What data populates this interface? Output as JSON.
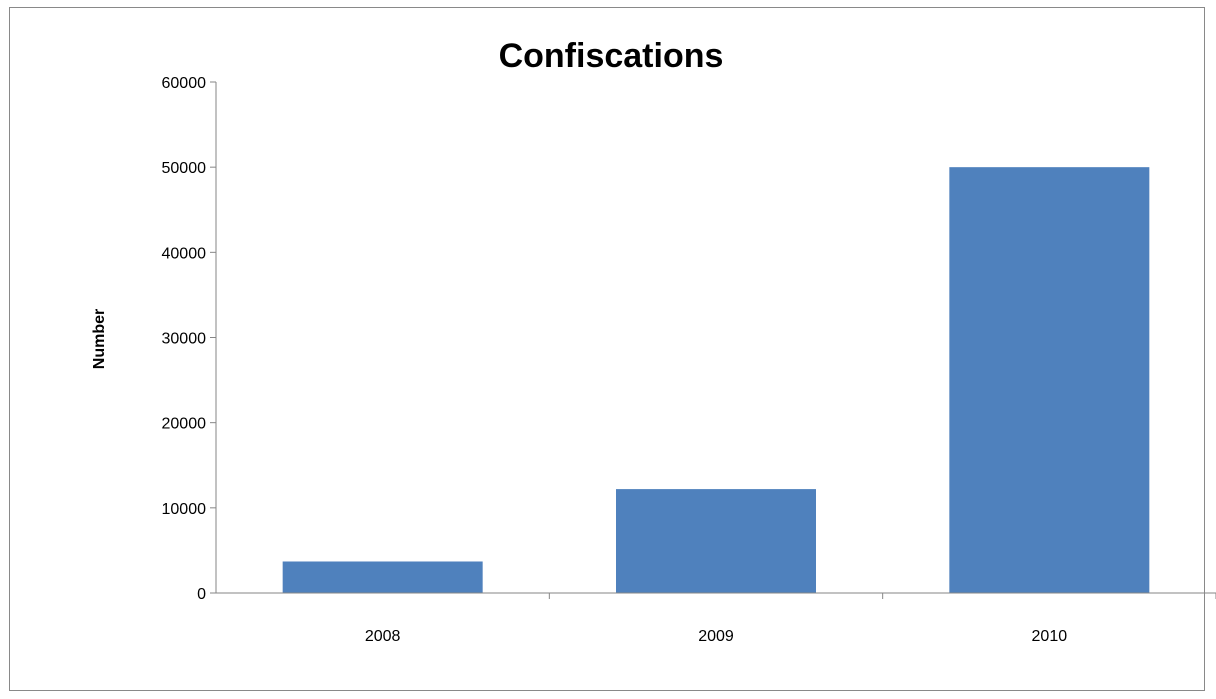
{
  "chart_data": {
    "type": "bar",
    "title": "Confiscations",
    "xlabel": "",
    "ylabel": "Number",
    "categories": [
      "2008",
      "2009",
      "2010"
    ],
    "values": [
      3700,
      12200,
      50000
    ],
    "ylim": [
      0,
      60000
    ],
    "yticks": [
      "0",
      "10000",
      "20000",
      "30000",
      "40000",
      "50000",
      "60000"
    ],
    "grid": false,
    "legend": "none",
    "bar_color": "#4F81BD",
    "axis_color": "#868686",
    "frame_color": "#898989"
  }
}
